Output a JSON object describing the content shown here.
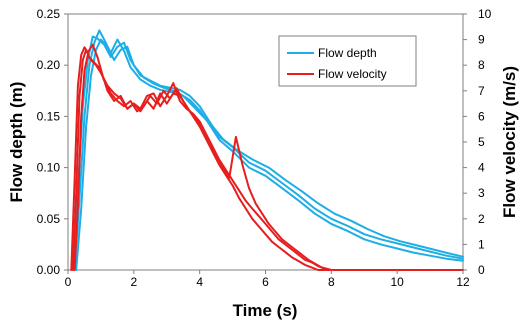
{
  "chart_data": {
    "type": "line",
    "xlabel": "Time (s)",
    "ylabel": "Flow depth (m)",
    "y2label": "Flow velocity (m/s)",
    "xlim": [
      0,
      12
    ],
    "ylim": [
      0,
      0.25
    ],
    "y2lim": [
      0,
      10
    ],
    "x_ticks": [
      "0",
      "2",
      "4",
      "6",
      "8",
      "10",
      "12"
    ],
    "y_ticks": [
      "0.00",
      "0.05",
      "0.10",
      "0.15",
      "0.20",
      "0.25"
    ],
    "y2_ticks": [
      "0",
      "1",
      "2",
      "3",
      "4",
      "5",
      "6",
      "7",
      "8",
      "9",
      "10"
    ],
    "grid": false,
    "legend_position": "top-right",
    "legend": [
      "Flow depth",
      "Flow velocity"
    ],
    "colors": {
      "depth": "#1eaee6",
      "velocity": "#e61e1e"
    },
    "series": [
      {
        "name": "Flow depth",
        "axis": "left",
        "color": "#1eaee6",
        "x": [
          0.15,
          0.3,
          0.45,
          0.6,
          0.75,
          0.9,
          1.1,
          1.3,
          1.5,
          1.7,
          1.9,
          2.2,
          2.5,
          2.8,
          3.1,
          3.4,
          3.7,
          4.0,
          4.3,
          4.6,
          5.0,
          5.5,
          6.0,
          6.5,
          7.0,
          7.5,
          8.0,
          8.5,
          9.0,
          9.5,
          10.0,
          10.5,
          11.0,
          11.5,
          12.0
        ],
        "y": [
          0.0,
          0.08,
          0.16,
          0.205,
          0.228,
          0.226,
          0.22,
          0.208,
          0.218,
          0.222,
          0.205,
          0.19,
          0.185,
          0.18,
          0.178,
          0.176,
          0.17,
          0.16,
          0.145,
          0.13,
          0.12,
          0.105,
          0.097,
          0.085,
          0.073,
          0.06,
          0.05,
          0.043,
          0.035,
          0.03,
          0.026,
          0.022,
          0.018,
          0.014,
          0.011
        ]
      },
      {
        "name": "Flow depth",
        "axis": "left",
        "color": "#1eaee6",
        "x": [
          0.2,
          0.35,
          0.5,
          0.65,
          0.8,
          0.95,
          1.1,
          1.3,
          1.5,
          1.7,
          1.9,
          2.2,
          2.5,
          2.8,
          3.1,
          3.4,
          3.7,
          4.0,
          4.3,
          4.6,
          5.0,
          5.5,
          6.0,
          6.5,
          7.0,
          7.5,
          8.0,
          8.5,
          9.0,
          9.5,
          10.0,
          10.5,
          11.0,
          11.5,
          12.0
        ],
        "y": [
          0.0,
          0.07,
          0.15,
          0.2,
          0.222,
          0.234,
          0.225,
          0.212,
          0.225,
          0.214,
          0.198,
          0.186,
          0.18,
          0.176,
          0.174,
          0.172,
          0.166,
          0.156,
          0.142,
          0.127,
          0.116,
          0.1,
          0.092,
          0.08,
          0.068,
          0.055,
          0.045,
          0.038,
          0.03,
          0.025,
          0.021,
          0.017,
          0.014,
          0.011,
          0.009
        ]
      },
      {
        "name": "Flow depth",
        "axis": "left",
        "color": "#1eaee6",
        "x": [
          0.25,
          0.4,
          0.55,
          0.7,
          0.85,
          1.0,
          1.2,
          1.4,
          1.6,
          1.8,
          2.0,
          2.3,
          2.6,
          2.9,
          3.2,
          3.5,
          3.8,
          4.1,
          4.4,
          4.7,
          5.1,
          5.6,
          6.1,
          6.6,
          7.1,
          7.6,
          8.1,
          8.6,
          9.1,
          9.6,
          10.1,
          10.6,
          11.1,
          11.6,
          12.0
        ],
        "y": [
          0.0,
          0.06,
          0.14,
          0.19,
          0.215,
          0.225,
          0.218,
          0.205,
          0.215,
          0.218,
          0.2,
          0.188,
          0.182,
          0.178,
          0.175,
          0.17,
          0.16,
          0.15,
          0.14,
          0.128,
          0.118,
          0.108,
          0.1,
          0.088,
          0.077,
          0.065,
          0.055,
          0.048,
          0.04,
          0.033,
          0.028,
          0.024,
          0.02,
          0.016,
          0.013
        ]
      },
      {
        "name": "Flow velocity",
        "axis": "right",
        "color": "#e61e1e",
        "x": [
          0.1,
          0.2,
          0.3,
          0.4,
          0.5,
          0.6,
          0.75,
          0.9,
          1.05,
          1.2,
          1.4,
          1.6,
          1.8,
          2.0,
          2.2,
          2.4,
          2.6,
          2.8,
          3.0,
          3.2,
          3.4,
          3.6,
          3.8,
          4.0,
          4.2,
          4.4,
          4.6,
          4.8,
          5.0,
          5.2,
          5.4,
          5.6,
          5.8,
          6.0,
          6.2,
          6.4,
          6.6,
          6.8,
          7.0,
          7.2,
          7.4,
          7.6,
          8.0,
          9.0,
          10.0,
          11.0,
          12.0
        ],
        "y": [
          0.0,
          3.5,
          7.2,
          8.4,
          8.7,
          8.5,
          8.8,
          8.3,
          7.6,
          7.0,
          6.6,
          6.8,
          6.3,
          6.5,
          6.2,
          6.6,
          6.3,
          6.9,
          6.5,
          6.9,
          6.8,
          6.4,
          6.0,
          5.6,
          5.1,
          4.6,
          4.1,
          3.7,
          3.3,
          2.8,
          2.4,
          2.0,
          1.7,
          1.4,
          1.1,
          0.9,
          0.7,
          0.5,
          0.35,
          0.2,
          0.1,
          0.0,
          0.0,
          0.0,
          0.0,
          0.0,
          0.0
        ]
      },
      {
        "name": "Flow velocity",
        "axis": "right",
        "color": "#e61e1e",
        "x": [
          0.15,
          0.25,
          0.35,
          0.45,
          0.55,
          0.65,
          0.8,
          0.95,
          1.1,
          1.3,
          1.5,
          1.7,
          1.9,
          2.1,
          2.3,
          2.5,
          2.7,
          2.9,
          3.1,
          3.3,
          3.5,
          3.7,
          3.9,
          4.1,
          4.3,
          4.5,
          4.7,
          4.9,
          5.1,
          5.3,
          5.5,
          5.7,
          5.9,
          6.1,
          6.3,
          6.5,
          6.7,
          6.9,
          7.1,
          7.3,
          7.5,
          7.7,
          8.0,
          9.0,
          10.0,
          11.0,
          12.0
        ],
        "y": [
          0.0,
          3.0,
          6.8,
          8.2,
          8.6,
          8.3,
          8.1,
          7.9,
          7.4,
          6.9,
          6.6,
          6.4,
          6.6,
          6.2,
          6.4,
          6.8,
          6.5,
          7.0,
          6.7,
          7.1,
          6.6,
          6.2,
          5.9,
          5.4,
          4.9,
          4.5,
          4.0,
          3.6,
          5.2,
          4.1,
          3.2,
          2.6,
          2.2,
          1.8,
          1.5,
          1.2,
          1.0,
          0.8,
          0.6,
          0.4,
          0.25,
          0.1,
          0.0,
          0.0,
          0.0,
          0.0,
          0.0
        ]
      },
      {
        "name": "Flow velocity",
        "axis": "right",
        "color": "#e61e1e",
        "x": [
          0.2,
          0.3,
          0.4,
          0.5,
          0.6,
          0.7,
          0.85,
          1.0,
          1.2,
          1.4,
          1.6,
          1.8,
          2.0,
          2.2,
          2.4,
          2.6,
          2.8,
          3.0,
          3.2,
          3.4,
          3.6,
          3.8,
          4.0,
          4.2,
          4.4,
          4.6,
          4.8,
          5.0,
          5.2,
          5.4,
          5.6,
          5.8,
          6.0,
          6.2,
          6.4,
          6.6,
          6.8,
          7.0,
          7.2,
          7.4,
          7.6,
          7.8,
          8.0,
          9.0,
          10.0,
          11.0,
          12.0
        ],
        "y": [
          0.0,
          2.5,
          6.0,
          7.8,
          8.4,
          8.2,
          8.0,
          7.7,
          7.2,
          6.9,
          6.7,
          6.3,
          6.5,
          6.3,
          6.8,
          6.9,
          6.4,
          6.8,
          7.3,
          6.6,
          6.3,
          6.1,
          5.8,
          5.3,
          4.8,
          4.3,
          3.9,
          3.5,
          3.1,
          2.7,
          2.4,
          2.1,
          1.8,
          1.5,
          1.2,
          1.0,
          0.8,
          0.6,
          0.4,
          0.3,
          0.15,
          0.05,
          0.0,
          0.0,
          0.0,
          0.0,
          0.0
        ]
      }
    ]
  }
}
